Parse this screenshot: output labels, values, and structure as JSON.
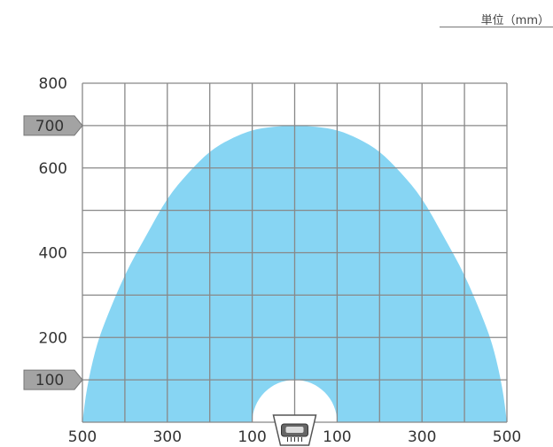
{
  "unit_label": "単位（mm）",
  "chart_data": {
    "type": "area",
    "title": "",
    "xlabel": "",
    "ylabel": "",
    "xlim": [
      -500,
      500
    ],
    "ylim": [
      0,
      800
    ],
    "grid": true,
    "x_tick_labels": [
      "500",
      "300",
      "100",
      "100",
      "300",
      "500"
    ],
    "x_tick_values": [
      -500,
      -300,
      -100,
      100,
      300,
      500
    ],
    "y_tick_labels": [
      "200",
      "400",
      "600",
      "800"
    ],
    "y_tick_values": [
      200,
      400,
      600,
      800
    ],
    "y_markers": [
      {
        "label": "700",
        "value": 700
      },
      {
        "label": "100",
        "value": 100
      }
    ],
    "fill_color": "#87d5f3",
    "marker_color": "#a3a3a3",
    "grid_color": "#888888",
    "series": [
      {
        "values_description_none": null,
        "outer_boundary": [
          [
            -500,
            0
          ],
          [
            -490,
            80
          ],
          [
            -470,
            170
          ],
          [
            -450,
            230
          ],
          [
            -400,
            350
          ],
          [
            -350,
            440
          ],
          [
            -300,
            530
          ],
          [
            -250,
            590
          ],
          [
            -200,
            640
          ],
          [
            -150,
            670
          ],
          [
            -100,
            690
          ],
          [
            -50,
            698
          ],
          [
            0,
            700
          ],
          [
            50,
            698
          ],
          [
            100,
            690
          ],
          [
            150,
            670
          ],
          [
            200,
            640
          ],
          [
            250,
            590
          ],
          [
            300,
            530
          ],
          [
            350,
            440
          ],
          [
            400,
            350
          ],
          [
            450,
            230
          ],
          [
            470,
            170
          ],
          [
            490,
            80
          ],
          [
            500,
            0
          ]
        ],
        "dead_zone_radius": 100
      }
    ]
  },
  "sensor_icon": "sensor-icon"
}
